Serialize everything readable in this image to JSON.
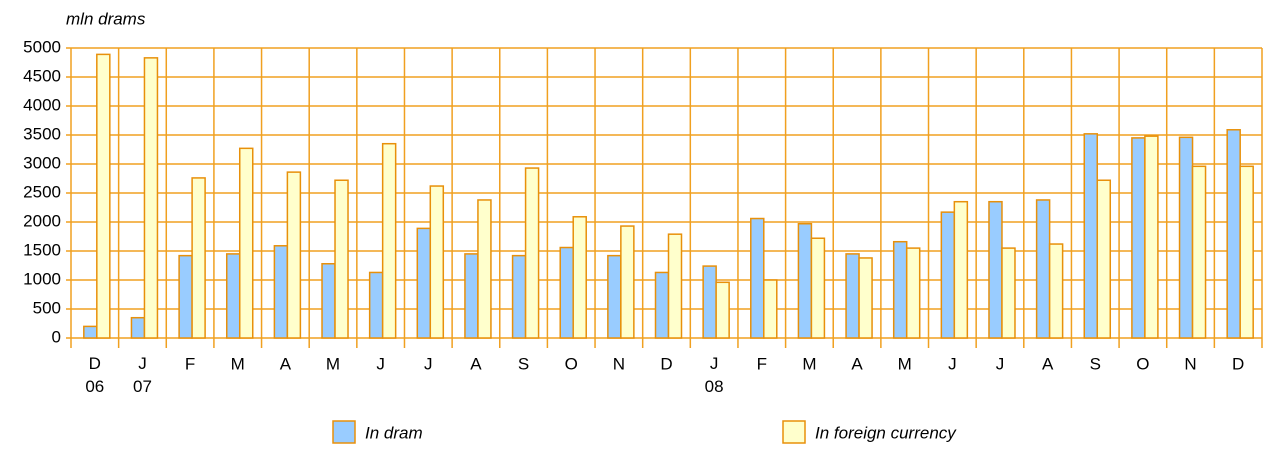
{
  "chart_data": {
    "type": "bar",
    "y_axis_label": "mln drams",
    "categories": [
      "D\n06",
      "J\n07",
      "F",
      "M",
      "A",
      "M",
      "J",
      "J",
      "A",
      "S",
      "O",
      "N",
      "D",
      "J\n08",
      "F",
      "M",
      "A",
      "M",
      "J",
      "J",
      "A",
      "S",
      "O",
      "N",
      "D"
    ],
    "series": [
      {
        "name": "In dram",
        "color": "#99ccff",
        "values": [
          200,
          350,
          1420,
          1450,
          1590,
          1280,
          1130,
          1890,
          1450,
          1420,
          1560,
          1420,
          1130,
          1240,
          2060,
          1970,
          1450,
          1660,
          2170,
          2350,
          2380,
          3520,
          3450,
          3460,
          3590
        ]
      },
      {
        "name": "In foreign currency",
        "color": "#ffffcc",
        "values": [
          4890,
          4830,
          2760,
          3270,
          2860,
          2720,
          3350,
          2620,
          2380,
          2930,
          2090,
          1930,
          1790,
          960,
          1000,
          1720,
          1380,
          1550,
          2350,
          1550,
          1620,
          2720,
          3480,
          2960,
          2960
        ]
      }
    ],
    "ylim": [
      0,
      5000
    ],
    "yticks": [
      0,
      500,
      1000,
      1500,
      2000,
      2500,
      3000,
      3500,
      4000,
      4500,
      5000
    ],
    "grid": true,
    "grid_color": "#f0a020",
    "bar_edge_color": "#e8900a",
    "legend": "bottom"
  }
}
